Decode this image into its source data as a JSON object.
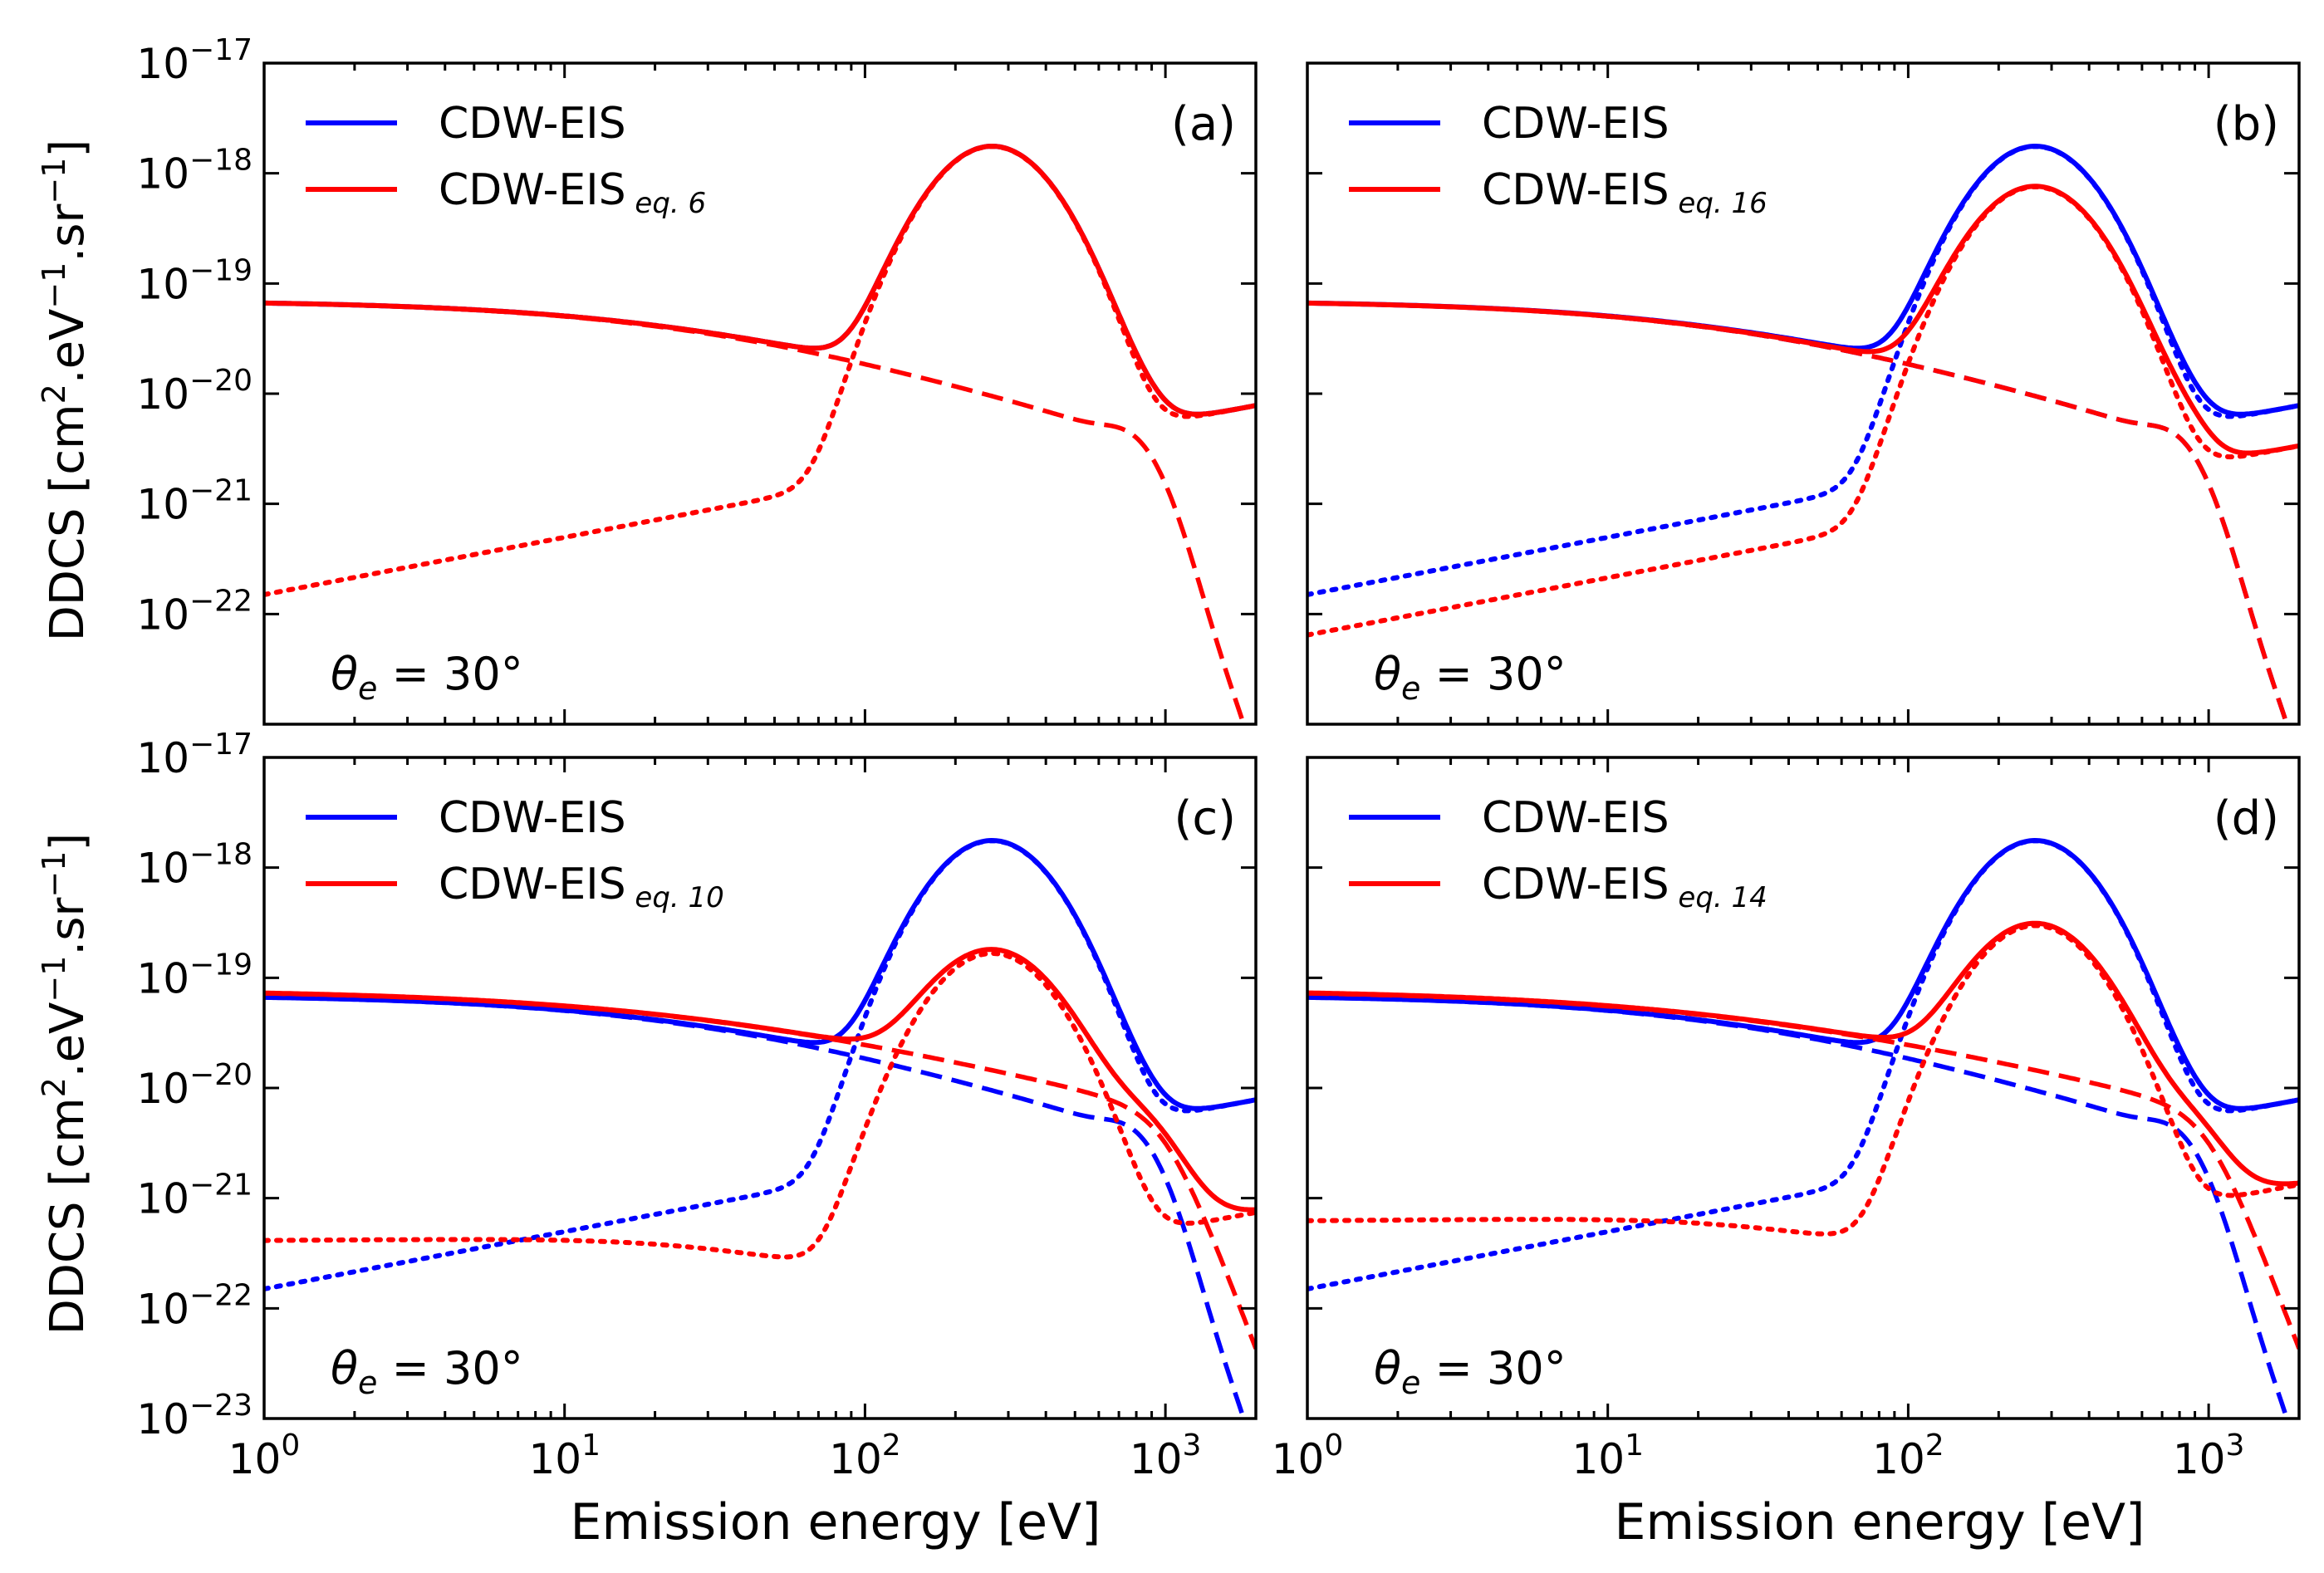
{
  "figure": {
    "xlabel": "Emission energy [eV]",
    "ylabel": "DDCS [cm",
    "ylabel_mid": ".eV",
    "ylabel_end": ".sr",
    "ylabel_sup2": "2",
    "ylabel_supm1": "−1",
    "ylabel_close": "]",
    "angle_label": "θ",
    "angle_sub": "e",
    "angle_value": " = 30°",
    "legend_blue": "CDW-EIS",
    "legend_red": "CDW-EIS",
    "tick_base": "10",
    "colors": {
      "blue": "#0000ff",
      "red": "#ff0000",
      "axis": "#000000"
    }
  },
  "chart_data": [
    {
      "panel": "(a)",
      "type": "line",
      "xscale": "log",
      "yscale": "log",
      "xlim": [
        1,
        2000
      ],
      "ylim": [
        1e-23,
        1e-17
      ],
      "ytick_exps": [
        -17,
        -18,
        -19,
        -20,
        -21,
        -22
      ],
      "xtick_exps": [],
      "legend_red_sub": "eq. 6",
      "red_scale": 1.0,
      "red_tail": 0,
      "blue_solid": true,
      "blue_dashed": false,
      "blue_dotted": false,
      "series": [
        {
          "name": "CDW-EIS",
          "color": "blue",
          "style": "solid"
        },
        {
          "name": "CDW-EIS eq. 6",
          "color": "red",
          "style": "solid"
        }
      ]
    },
    {
      "panel": "(b)",
      "type": "line",
      "xscale": "log",
      "yscale": "log",
      "xlim": [
        1,
        2000
      ],
      "ylim": [
        1e-23,
        1e-17
      ],
      "ytick_exps": [],
      "xtick_exps": [],
      "legend_red_sub": "eq. 16",
      "red_scale": 0.43,
      "red_tail": 0,
      "blue_solid": true,
      "blue_dashed": true,
      "blue_dotted": true,
      "series": [
        {
          "name": "CDW-EIS",
          "color": "blue",
          "style": "solid"
        },
        {
          "name": "CDW-EIS eq. 16",
          "color": "red",
          "style": "solid"
        }
      ]
    },
    {
      "panel": "(c)",
      "type": "line",
      "xscale": "log",
      "yscale": "log",
      "xlim": [
        1,
        2000
      ],
      "ylim": [
        1e-23,
        1e-17
      ],
      "ytick_exps": [
        -17,
        -18,
        -19,
        -20,
        -21,
        -22,
        -23
      ],
      "xtick_exps": [
        0,
        1,
        2,
        3
      ],
      "legend_red_sub": "eq. 10",
      "red_scale": 0.095,
      "red_tail": 4e-22,
      "blue_solid": true,
      "blue_dashed": true,
      "blue_dotted": true,
      "series": [
        {
          "name": "CDW-EIS",
          "color": "blue",
          "style": "solid"
        },
        {
          "name": "CDW-EIS eq. 10",
          "color": "red",
          "style": "solid"
        }
      ]
    },
    {
      "panel": "(d)",
      "type": "line",
      "xscale": "log",
      "yscale": "log",
      "xlim": [
        1,
        2000
      ],
      "ylim": [
        1e-23,
        1e-17
      ],
      "ytick_exps": [],
      "xtick_exps": [
        0,
        1,
        2,
        3
      ],
      "legend_red_sub": "eq. 14",
      "red_scale": 0.17,
      "red_tail": 6e-22,
      "blue_solid": true,
      "blue_dashed": true,
      "blue_dotted": true,
      "series": [
        {
          "name": "CDW-EIS",
          "color": "blue",
          "style": "solid"
        },
        {
          "name": "CDW-EIS eq. 14",
          "color": "red",
          "style": "solid"
        }
      ]
    }
  ]
}
